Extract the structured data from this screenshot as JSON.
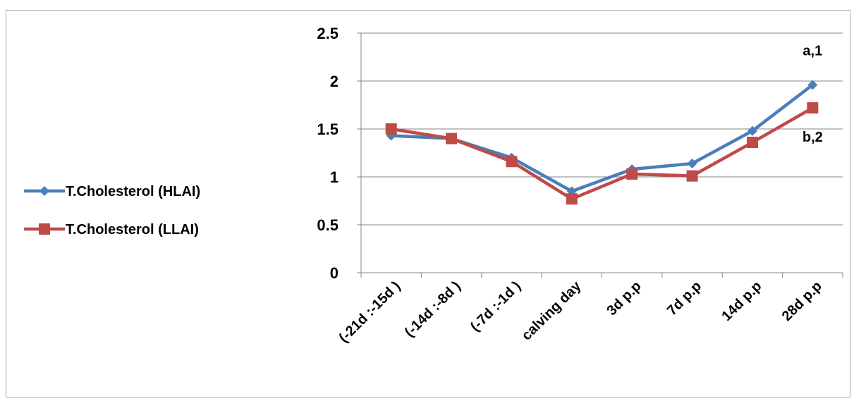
{
  "chart_data": {
    "type": "line",
    "categories": [
      "(-21d :-15d )",
      "(-14d :-8d )",
      "(-7d :-1d )",
      "calving day",
      "3d  p.p",
      "7d  p.p",
      "14d  p.p",
      "28d  p.p"
    ],
    "series": [
      {
        "name": "T.Cholesterol (HLAI)",
        "values": [
          1.43,
          1.4,
          1.2,
          0.85,
          1.08,
          1.14,
          1.48,
          1.96
        ],
        "color": "#4a7ebb",
        "marker": "diamond"
      },
      {
        "name": "T.Cholesterol (LLAI)",
        "values": [
          1.5,
          1.4,
          1.16,
          0.77,
          1.03,
          1.01,
          1.36,
          1.72
        ],
        "color": "#be4b48",
        "marker": "square"
      }
    ],
    "ylim": [
      0,
      2.5
    ],
    "yticks": [
      "0",
      "0.5",
      "1",
      "1.5",
      "2",
      "2.5"
    ],
    "grid": true,
    "legend_placement": "left",
    "annotations": [
      {
        "text": "a,1",
        "series": 0,
        "index": 7
      },
      {
        "text": "b,2",
        "series": 1,
        "index": 7
      }
    ]
  }
}
